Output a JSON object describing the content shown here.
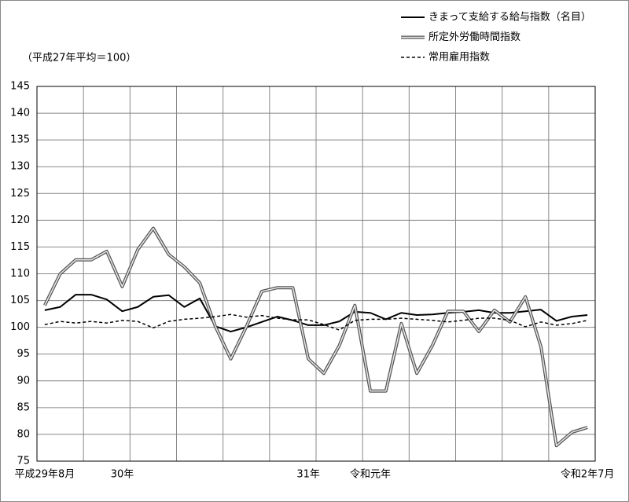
{
  "chart_data": {
    "type": "line",
    "note": "（平成27年平均＝100）",
    "categories": [
      "平成29年8月",
      null,
      null,
      null,
      null,
      "30年",
      null,
      null,
      null,
      null,
      null,
      null,
      null,
      null,
      null,
      null,
      null,
      "31年",
      null,
      null,
      null,
      "令和元年",
      null,
      null,
      null,
      null,
      null,
      null,
      null,
      null,
      null,
      null,
      null,
      null,
      null,
      "令和2年7月"
    ],
    "series": [
      {
        "name": "きまって支給する給与指数（名目）",
        "color": "#000000",
        "style": "solid",
        "values": [
          103.2,
          103.8,
          106.1,
          106.1,
          105.2,
          103.0,
          103.8,
          105.7,
          106.0,
          103.8,
          105.4,
          100.2,
          99.2,
          100.0,
          101.0,
          102.0,
          101.3,
          100.4,
          100.4,
          101.1,
          102.9,
          102.7,
          101.5,
          102.7,
          102.3,
          102.4,
          102.7,
          102.9,
          103.2,
          102.7,
          102.7,
          103.0,
          103.3,
          101.2,
          102.0,
          102.3
        ]
      },
      {
        "name": "所定外労働時間指数",
        "color": "#555555",
        "style": "double",
        "values": [
          104.1,
          110.0,
          112.6,
          112.6,
          114.2,
          107.6,
          114.5,
          118.5,
          113.6,
          111.3,
          108.3,
          100.2,
          94.1,
          100.1,
          106.7,
          107.4,
          107.4,
          94.1,
          91.4,
          96.6,
          104.1,
          88.1,
          88.1,
          100.7,
          91.4,
          96.6,
          103.0,
          103.0,
          99.2,
          103.2,
          101.0,
          105.7,
          96.4,
          77.9,
          80.4,
          81.3
        ]
      },
      {
        "name": "常用雇用指数",
        "color": "#000000",
        "style": "dashed",
        "values": [
          100.5,
          101.1,
          100.8,
          101.1,
          100.8,
          101.3,
          101.1,
          99.9,
          101.1,
          101.5,
          101.7,
          102.0,
          102.4,
          101.9,
          102.2,
          101.7,
          101.4,
          101.4,
          100.5,
          99.5,
          101.3,
          101.5,
          101.5,
          101.7,
          101.5,
          101.3,
          101.0,
          101.3,
          101.7,
          101.7,
          101.3,
          100.1,
          101.0,
          100.4,
          100.7,
          101.3
        ]
      }
    ],
    "ylim": [
      75,
      145
    ],
    "yticks": [
      75,
      80,
      85,
      90,
      95,
      100,
      105,
      110,
      115,
      120,
      125,
      130,
      135,
      140,
      145
    ],
    "grid": true,
    "legend": "top-right"
  }
}
